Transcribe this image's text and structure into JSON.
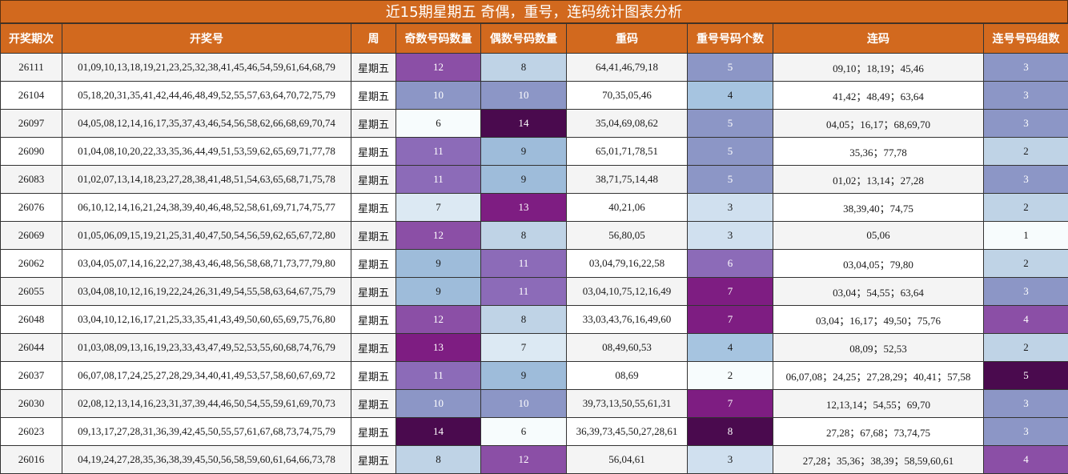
{
  "title": "近15期星期五 奇偶，重号，连码统计图表分析",
  "headers": [
    "开奖期次",
    "开奖号",
    "周",
    "奇数号码数量",
    "偶数号码数量",
    "重码",
    "重号号码个数",
    "连码",
    "连号号码组数"
  ],
  "colors": {
    "header_bg": "#d2691e",
    "header_text": "#ffffff"
  },
  "rows": [
    {
      "issue": "26111",
      "numbers": "01,09,10,13,18,19,21,23,25,32,38,41,45,46,54,59,61,64,68,79",
      "week": "星期五",
      "odd": "12",
      "even": "8",
      "repeat": "64,41,46,79,18",
      "repeat_count": "5",
      "consecutive": "09,10；18,19；45,46",
      "consec_groups": "3"
    },
    {
      "issue": "26104",
      "numbers": "05,18,20,31,35,41,42,44,46,48,49,52,55,57,63,64,70,72,75,79",
      "week": "星期五",
      "odd": "10",
      "even": "10",
      "repeat": "70,35,05,46",
      "repeat_count": "4",
      "consecutive": "41,42；48,49；63,64",
      "consec_groups": "3"
    },
    {
      "issue": "26097",
      "numbers": "04,05,08,12,14,16,17,35,37,43,46,54,56,58,62,66,68,69,70,74",
      "week": "星期五",
      "odd": "6",
      "even": "14",
      "repeat": "35,04,69,08,62",
      "repeat_count": "5",
      "consecutive": "04,05；16,17；68,69,70",
      "consec_groups": "3"
    },
    {
      "issue": "26090",
      "numbers": "01,04,08,10,20,22,33,35,36,44,49,51,53,59,62,65,69,71,77,78",
      "week": "星期五",
      "odd": "11",
      "even": "9",
      "repeat": "65,01,71,78,51",
      "repeat_count": "5",
      "consecutive": "35,36；77,78",
      "consec_groups": "2"
    },
    {
      "issue": "26083",
      "numbers": "01,02,07,13,14,18,23,27,28,38,41,48,51,54,63,65,68,71,75,78",
      "week": "星期五",
      "odd": "11",
      "even": "9",
      "repeat": "38,71,75,14,48",
      "repeat_count": "5",
      "consecutive": "01,02；13,14；27,28",
      "consec_groups": "3"
    },
    {
      "issue": "26076",
      "numbers": "06,10,12,14,16,21,24,38,39,40,46,48,52,58,61,69,71,74,75,77",
      "week": "星期五",
      "odd": "7",
      "even": "13",
      "repeat": "40,21,06",
      "repeat_count": "3",
      "consecutive": "38,39,40；74,75",
      "consec_groups": "2"
    },
    {
      "issue": "26069",
      "numbers": "01,05,06,09,15,19,21,25,31,40,47,50,54,56,59,62,65,67,72,80",
      "week": "星期五",
      "odd": "12",
      "even": "8",
      "repeat": "56,80,05",
      "repeat_count": "3",
      "consecutive": "05,06",
      "consec_groups": "1"
    },
    {
      "issue": "26062",
      "numbers": "03,04,05,07,14,16,22,27,38,43,46,48,56,58,68,71,73,77,79,80",
      "week": "星期五",
      "odd": "9",
      "even": "11",
      "repeat": "03,04,79,16,22,58",
      "repeat_count": "6",
      "consecutive": "03,04,05；79,80",
      "consec_groups": "2"
    },
    {
      "issue": "26055",
      "numbers": "03,04,08,10,12,16,19,22,24,26,31,49,54,55,58,63,64,67,75,79",
      "week": "星期五",
      "odd": "9",
      "even": "11",
      "repeat": "03,04,10,75,12,16,49",
      "repeat_count": "7",
      "consecutive": "03,04；54,55；63,64",
      "consec_groups": "3"
    },
    {
      "issue": "26048",
      "numbers": "03,04,10,12,16,17,21,25,33,35,41,43,49,50,60,65,69,75,76,80",
      "week": "星期五",
      "odd": "12",
      "even": "8",
      "repeat": "33,03,43,76,16,49,60",
      "repeat_count": "7",
      "consecutive": "03,04；16,17；49,50；75,76",
      "consec_groups": "4"
    },
    {
      "issue": "26044",
      "numbers": "01,03,08,09,13,16,19,23,33,43,47,49,52,53,55,60,68,74,76,79",
      "week": "星期五",
      "odd": "13",
      "even": "7",
      "repeat": "08,49,60,53",
      "repeat_count": "4",
      "consecutive": "08,09；52,53",
      "consec_groups": "2"
    },
    {
      "issue": "26037",
      "numbers": "06,07,08,17,24,25,27,28,29,34,40,41,49,53,57,58,60,67,69,72",
      "week": "星期五",
      "odd": "11",
      "even": "9",
      "repeat": "08,69",
      "repeat_count": "2",
      "consecutive": "06,07,08；24,25；27,28,29；40,41；57,58",
      "consec_groups": "5"
    },
    {
      "issue": "26030",
      "numbers": "02,08,12,13,14,16,23,31,37,39,44,46,50,54,55,59,61,69,70,73",
      "week": "星期五",
      "odd": "10",
      "even": "10",
      "repeat": "39,73,13,50,55,61,31",
      "repeat_count": "7",
      "consecutive": "12,13,14；54,55；69,70",
      "consec_groups": "3"
    },
    {
      "issue": "26023",
      "numbers": "09,13,17,27,28,31,36,39,42,45,50,55,57,61,67,68,73,74,75,79",
      "week": "星期五",
      "odd": "14",
      "even": "6",
      "repeat": "36,39,73,45,50,27,28,61",
      "repeat_count": "8",
      "consecutive": "27,28；67,68；73,74,75",
      "consec_groups": "3"
    },
    {
      "issue": "26016",
      "numbers": "04,19,24,27,28,35,36,38,39,45,50,56,58,59,60,61,64,66,73,78",
      "week": "星期五",
      "odd": "8",
      "even": "12",
      "repeat": "56,04,61",
      "repeat_count": "3",
      "consecutive": "27,28；35,36；38,39；58,59,60,61",
      "consec_groups": "4"
    }
  ]
}
